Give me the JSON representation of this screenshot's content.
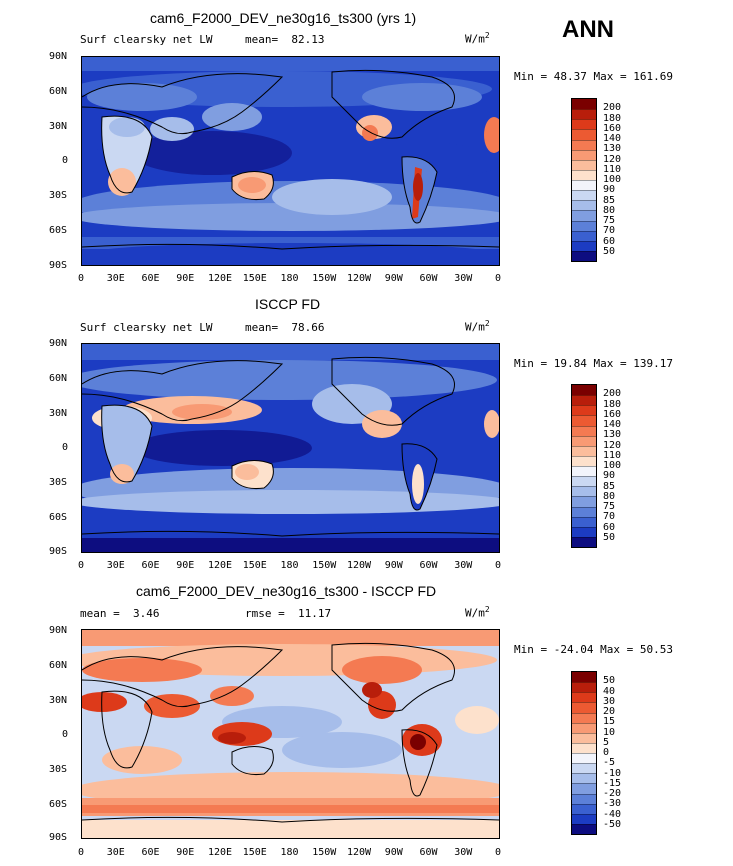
{
  "season": "ANN",
  "colorbar_abs": {
    "levels": [
      "200",
      "180",
      "160",
      "140",
      "130",
      "120",
      "110",
      "100",
      "90",
      "85",
      "80",
      "75",
      "70",
      "60",
      "50"
    ],
    "colors": [
      "#7a0000",
      "#b81e0b",
      "#dd3a1a",
      "#ec5a32",
      "#f47a52",
      "#f89a74",
      "#fbbd9c",
      "#fde1cc",
      "#f2f4fb",
      "#cad8f2",
      "#a6bdea",
      "#809ee0",
      "#5c80d8",
      "#3a60d0",
      "#1c3cc2",
      "#0d0d80"
    ]
  },
  "colorbar_diff": {
    "levels": [
      "50",
      "40",
      "30",
      "20",
      "15",
      "10",
      "5",
      "0",
      "-5",
      "-10",
      "-15",
      "-20",
      "-30",
      "-40",
      "-50"
    ],
    "colors": [
      "#7a0000",
      "#b81e0b",
      "#dd3a1a",
      "#ec5a32",
      "#f47a52",
      "#f89a74",
      "#fbbd9c",
      "#fde1cc",
      "#f2f4fb",
      "#cad8f2",
      "#a6bdea",
      "#809ee0",
      "#5c80d8",
      "#3a60d0",
      "#1c3cc2",
      "#0d0d80"
    ]
  },
  "panels": [
    {
      "title": "cam6_F2000_DEV_ne30g16_ts300 (yrs 1)",
      "left_label": "Surf clearsky net LW",
      "mean_label": "mean=",
      "mean_value": "82.13",
      "units": "W/m",
      "units_sup": "2",
      "minmax": "Min =  48.37 Max = 161.69"
    },
    {
      "title": "ISCCP FD",
      "left_label": "Surf clearsky net LW",
      "mean_label": "mean=",
      "mean_value": "78.66",
      "units": "W/m",
      "units_sup": "2",
      "minmax": "Min =  19.84 Max = 139.17"
    },
    {
      "title": "cam6_F2000_DEV_ne30g16_ts300 - ISCCP FD",
      "left_label": "mean =",
      "left_value": "3.46",
      "mean_label": "rmse =",
      "mean_value": "11.17",
      "units": "W/m",
      "units_sup": "2",
      "minmax": "Min = -24.04 Max =  50.53"
    }
  ],
  "x_ticks": [
    "0",
    "30E",
    "60E",
    "90E",
    "120E",
    "150E",
    "180",
    "150W",
    "120W",
    "90W",
    "60W",
    "30W",
    "0"
  ],
  "y_ticks": [
    "90N",
    "60N",
    "30N",
    "0",
    "30S",
    "60S",
    "90S"
  ],
  "chart_data": [
    {
      "type": "heatmap",
      "title": "cam6_F2000_DEV_ne30g16_ts300 (yrs 1)",
      "variable": "Surf clearsky net LW",
      "units": "W/m2",
      "mean": 82.13,
      "min": 48.37,
      "max": 161.69,
      "xlim": [
        0,
        360
      ],
      "ylim": [
        -90,
        90
      ],
      "contour_levels": [
        50,
        60,
        70,
        75,
        80,
        85,
        90,
        100,
        110,
        120,
        130,
        140,
        160,
        180,
        200
      ]
    },
    {
      "type": "heatmap",
      "title": "ISCCP FD",
      "variable": "Surf clearsky net LW",
      "units": "W/m2",
      "mean": 78.66,
      "min": 19.84,
      "max": 139.17,
      "xlim": [
        0,
        360
      ],
      "ylim": [
        -90,
        90
      ],
      "contour_levels": [
        50,
        60,
        70,
        75,
        80,
        85,
        90,
        100,
        110,
        120,
        130,
        140,
        160,
        180,
        200
      ]
    },
    {
      "type": "heatmap",
      "title": "cam6_F2000_DEV_ne30g16_ts300 - ISCCP FD",
      "units": "W/m2",
      "mean": 3.46,
      "rmse": 11.17,
      "min": -24.04,
      "max": 50.53,
      "xlim": [
        0,
        360
      ],
      "ylim": [
        -90,
        90
      ],
      "contour_levels": [
        -50,
        -40,
        -30,
        -20,
        -15,
        -10,
        -5,
        0,
        5,
        10,
        15,
        20,
        30,
        40,
        50
      ]
    }
  ]
}
